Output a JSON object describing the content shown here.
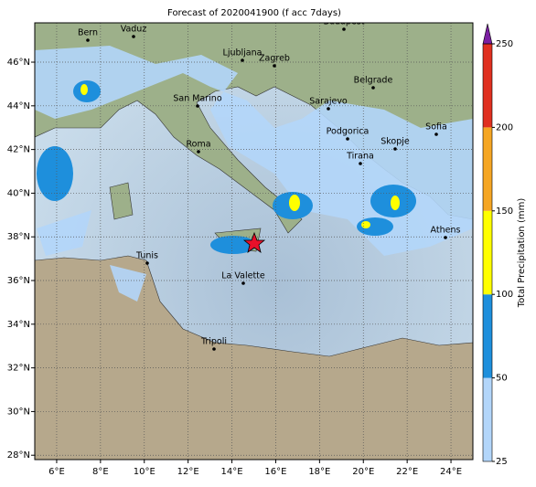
{
  "title": "Forecast of 2020041900 (f acc 7days)",
  "map": {
    "xticks": [
      {
        "value": 6,
        "label": "6°E"
      },
      {
        "value": 8,
        "label": "8°E"
      },
      {
        "value": 10,
        "label": "10°E"
      },
      {
        "value": 12,
        "label": "12°E"
      },
      {
        "value": 14,
        "label": "14°E"
      },
      {
        "value": 16,
        "label": "16°E"
      },
      {
        "value": 18,
        "label": "18°E"
      },
      {
        "value": 20,
        "label": "20°E"
      },
      {
        "value": 22,
        "label": "22°E"
      },
      {
        "value": 24,
        "label": "24°E"
      }
    ],
    "yticks": [
      {
        "value": 28,
        "label": "28°N"
      },
      {
        "value": 30,
        "label": "30°N"
      },
      {
        "value": 32,
        "label": "32°N"
      },
      {
        "value": 34,
        "label": "34°N"
      },
      {
        "value": 36,
        "label": "36°N"
      },
      {
        "value": 38,
        "label": "38°N"
      },
      {
        "value": 40,
        "label": "40°N"
      },
      {
        "value": 42,
        "label": "42°N"
      },
      {
        "value": 44,
        "label": "44°N"
      },
      {
        "value": 46,
        "label": "46°N"
      }
    ],
    "xlim": [
      5,
      25
    ],
    "ylim": [
      27.8,
      47.8
    ],
    "grid": true,
    "cities": [
      "Bern",
      "Vaduz",
      "Budapest",
      "Ljubljana",
      "Zagreb",
      "Belgrade",
      "San Marino",
      "Sarajevo",
      "Sofia",
      "Roma",
      "Podgorica",
      "Skopje",
      "Tirana",
      "Athens",
      "Tunis",
      "La Valette",
      "Tripoli"
    ]
  },
  "colorbar": {
    "label": "Total Precipitation (mm)",
    "ticks": [
      25,
      50,
      100,
      150,
      200,
      250
    ],
    "lim": [
      25,
      250
    ],
    "colors": [
      "#b3d6fa",
      "#1e8fdc",
      "#ffff00",
      "#f5a623",
      "#e03020"
    ],
    "extend_color": "#7b1fa2"
  }
}
